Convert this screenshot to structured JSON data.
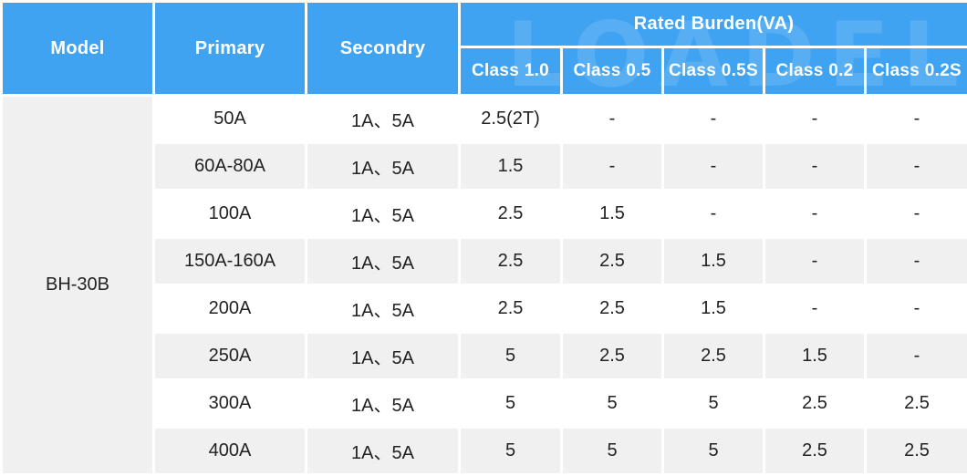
{
  "table": {
    "headers": {
      "model": "Model",
      "primary": "Primary",
      "secondary": "Secondry",
      "rated_burden": "Rated Burden(VA)",
      "classes": [
        "Class 1.0",
        "Class 0.5",
        "Class 0.5S",
        "Class 0.2",
        "Class 0.2S"
      ]
    },
    "model": "BH-30B",
    "rows": [
      {
        "primary": "50A",
        "secondary": "1A、5A",
        "values": [
          "2.5(2T)",
          "-",
          "-",
          "-",
          "-"
        ]
      },
      {
        "primary": "60A-80A",
        "secondary": "1A、5A",
        "values": [
          "1.5",
          "-",
          "-",
          "-",
          "-"
        ]
      },
      {
        "primary": "100A",
        "secondary": "1A、5A",
        "values": [
          "2.5",
          "1.5",
          "-",
          "-",
          "-"
        ]
      },
      {
        "primary": "150A-160A",
        "secondary": "1A、5A",
        "values": [
          "2.5",
          "2.5",
          "1.5",
          "-",
          "-"
        ]
      },
      {
        "primary": "200A",
        "secondary": "1A、5A",
        "values": [
          "2.5",
          "2.5",
          "1.5",
          "-",
          "-"
        ]
      },
      {
        "primary": "250A",
        "secondary": "1A、5A",
        "values": [
          "5",
          "2.5",
          "2.5",
          "1.5",
          "-"
        ]
      },
      {
        "primary": "300A",
        "secondary": "1A、5A",
        "values": [
          "5",
          "5",
          "5",
          "2.5",
          "2.5"
        ]
      },
      {
        "primary": "400A",
        "secondary": "1A、5A",
        "values": [
          "5",
          "5",
          "5",
          "2.5",
          "2.5"
        ]
      }
    ],
    "watermark": "LOADEL"
  }
}
